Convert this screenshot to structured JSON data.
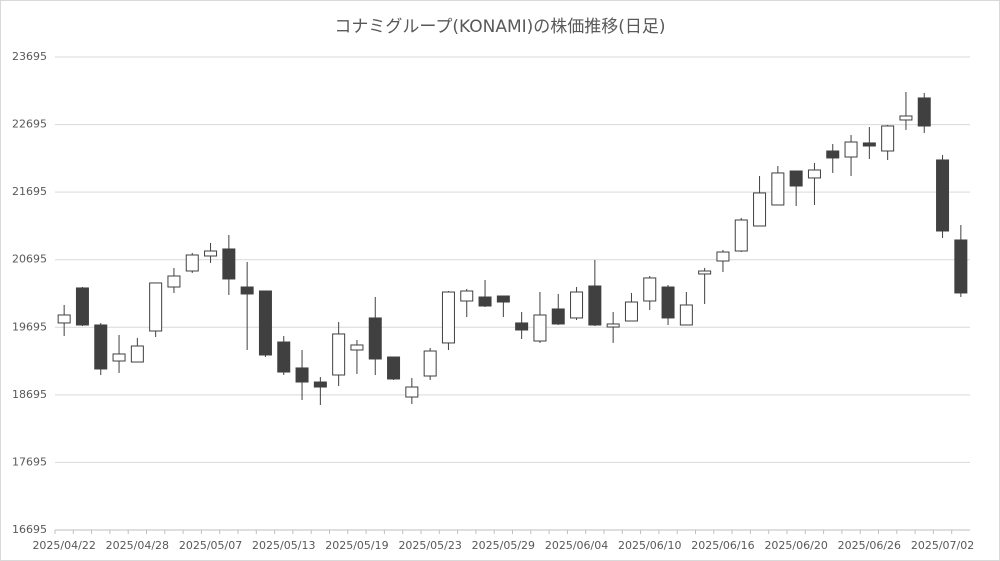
{
  "chart_data": {
    "type": "candlestick",
    "title": "コナミグループ(KONAMI)の株価推移(日足)",
    "categories": [
      "2025/04/22",
      null,
      null,
      null,
      "2025/04/28",
      null,
      null,
      null,
      "2025/05/07",
      null,
      null,
      null,
      "2025/05/13",
      null,
      null,
      null,
      "2025/05/19",
      null,
      null,
      null,
      "2025/05/23",
      null,
      null,
      null,
      "2025/05/29",
      null,
      null,
      null,
      "2025/06/04",
      null,
      null,
      null,
      "2025/06/10",
      null,
      null,
      null,
      "2025/06/16",
      null,
      null,
      null,
      "2025/06/20",
      null,
      null,
      null,
      "2025/06/26",
      null,
      null,
      null,
      "2025/07/02",
      null
    ],
    "open": [
      19759,
      20277,
      19729,
      19196,
      19181,
      19640,
      20291,
      20528,
      20750,
      20854,
      20291,
      20232,
      19477,
      19093,
      18885,
      18989,
      19359,
      19833,
      19255,
      18663,
      18974,
      19463,
      20084,
      20143,
      20158,
      19759,
      19492,
      19966,
      19833,
      20306,
      19699,
      19788,
      20084,
      20291,
      19729,
      20484,
      20676,
      20824,
      21194,
      21505,
      22008,
      21905,
      22304,
      22215,
      22423,
      22304,
      22763,
      23089,
      22171,
      20987
    ],
    "high": [
      20025,
      20291,
      19759,
      19581,
      19537,
      20351,
      20573,
      20795,
      20943,
      21061,
      20661,
      20232,
      19566,
      19359,
      18959,
      19773,
      19507,
      20143,
      19255,
      18945,
      19389,
      20232,
      20262,
      20395,
      20158,
      19921,
      20217,
      20188,
      20291,
      20691,
      19921,
      20203,
      20454,
      20321,
      20217,
      20573,
      20839,
      21313,
      21934,
      22082,
      22008,
      22127,
      22408,
      22541,
      22659,
      22689,
      23177,
      23163,
      22245,
      21209
    ],
    "low": [
      19566,
      19714,
      18989,
      19019,
      19181,
      19551,
      20203,
      20499,
      20647,
      20173,
      19359,
      19255,
      18989,
      18619,
      18545,
      18826,
      19004,
      18989,
      18915,
      18560,
      18915,
      19359,
      19847,
      19995,
      19847,
      19522,
      19463,
      19729,
      19803,
      19714,
      19463,
      19788,
      19951,
      19729,
      19729,
      20040,
      20513,
      20809,
      21194,
      21505,
      21490,
      21505,
      21979,
      21934,
      22186,
      22171,
      22615,
      22571,
      21017,
      20143
    ],
    "close": [
      19877,
      19729,
      19078,
      19300,
      19418,
      20351,
      20454,
      20765,
      20824,
      20410,
      20188,
      19285,
      19033,
      18885,
      18811,
      19596,
      19433,
      19226,
      18930,
      18811,
      19344,
      20217,
      20232,
      20010,
      20069,
      19655,
      19877,
      19744,
      20217,
      19729,
      19744,
      20069,
      20425,
      19833,
      20025,
      20528,
      20809,
      21283,
      21683,
      21979,
      21786,
      22023,
      22201,
      22437,
      22378,
      22674,
      22822,
      22674,
      21120,
      20203
    ],
    "up_color": "#ffffff",
    "down_color": "#404040",
    "ylim": [
      16695,
      23695
    ],
    "yticks": [
      16695,
      17695,
      18695,
      19695,
      20695,
      21695,
      22695,
      23695
    ],
    "grid": true
  }
}
